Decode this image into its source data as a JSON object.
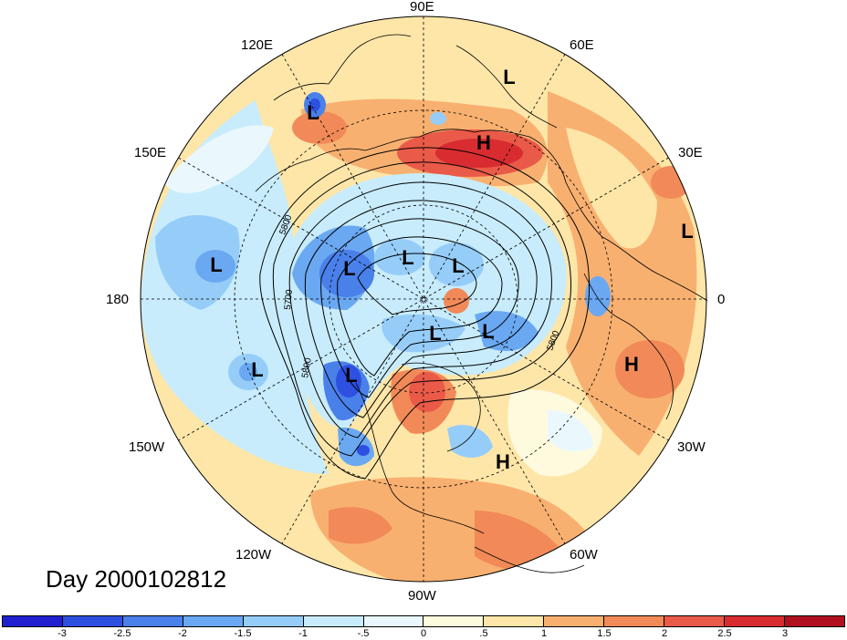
{
  "title": "Day 2000102812",
  "longitude_labels": {
    "lon_90e": "90E",
    "lon_120e": "120E",
    "lon_60e": "60E",
    "lon_150e": "150E",
    "lon_30e": "30E",
    "lon_180": "180",
    "lon_0": "0",
    "lon_150w": "150W",
    "lon_30w": "30W",
    "lon_120w": "120W",
    "lon_60w": "60W",
    "lon_90w": "90W"
  },
  "pressure_centers": [
    "L",
    "L",
    "L",
    "L",
    "L",
    "L",
    "L",
    "L",
    "L",
    "L",
    "L",
    "H",
    "H",
    "H"
  ],
  "contour_labels": [
    "5800",
    "5700",
    "5800",
    "5800"
  ],
  "colorbar": {
    "colors": [
      "#2020d0",
      "#2e50e0",
      "#4a80ea",
      "#6aa8f2",
      "#96cdf8",
      "#c8ecfc",
      "#eaf8fe",
      "#fefade",
      "#fde6a8",
      "#f8b070",
      "#f18a58",
      "#ea5a48",
      "#d82c30",
      "#b01020"
    ],
    "labels": [
      "-3",
      "-2.5",
      "-2",
      "-1.5",
      "-1",
      "-.5",
      "0",
      ".5",
      "1",
      "1.5",
      "2",
      "2.5",
      "3"
    ]
  }
}
